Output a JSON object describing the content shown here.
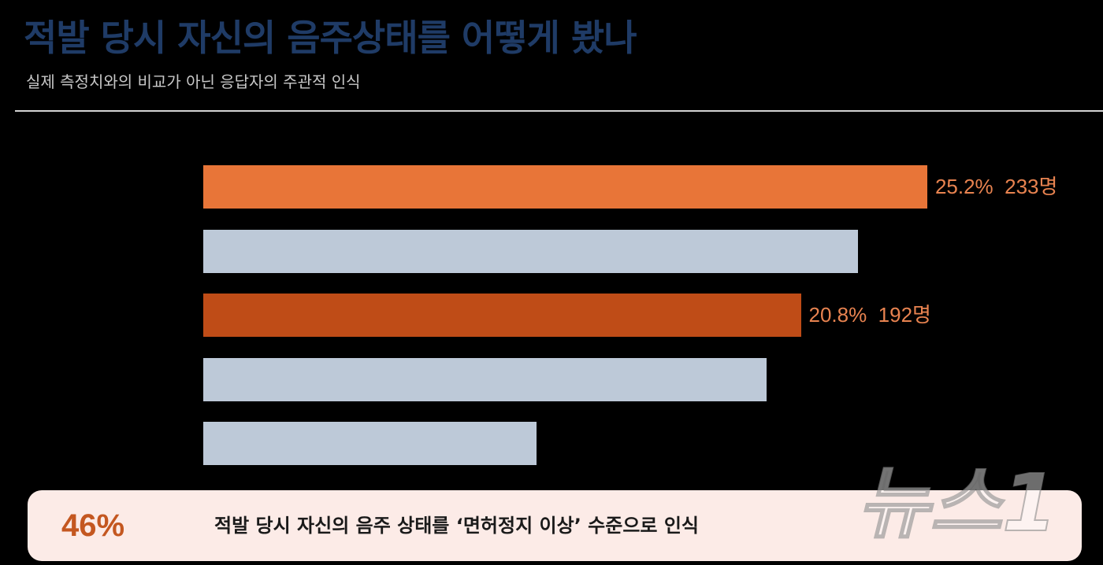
{
  "colors": {
    "background": "#000000",
    "title": "#1F3B66",
    "subtitle": "#C8C8C8",
    "divider": "#D4D4D4",
    "data_label": "#E88350",
    "callout_bg": "#FCEBE7",
    "callout_value": "#C45720",
    "callout_text": "#1A1A1A"
  },
  "chart_data": {
    "type": "bar",
    "horizontal": true,
    "title": "적발 당시 자신의 음주상태를 어떻게 봤나",
    "subtitle": "실제 측정치와의 비교가 아닌 응답자의 주관적 인식",
    "values": [
      25.2,
      22.8,
      20.8,
      19.6,
      11.6
    ],
    "data_labels": [
      "25.2%  233명",
      null,
      "20.8%  192명",
      null,
      null
    ],
    "bar_colors": [
      "#E87538",
      "#BDC9D8",
      "#BF4C17",
      "#BDC9D8",
      "#BDC9D8"
    ],
    "xlim": [
      0,
      30
    ],
    "grid": false,
    "legend": false
  },
  "callout": {
    "value": "46%",
    "text": "적발 당시 자신의 음주 상태를 ‘면허정지 이상’ 수준으로 인식"
  },
  "watermark": "뉴스1"
}
